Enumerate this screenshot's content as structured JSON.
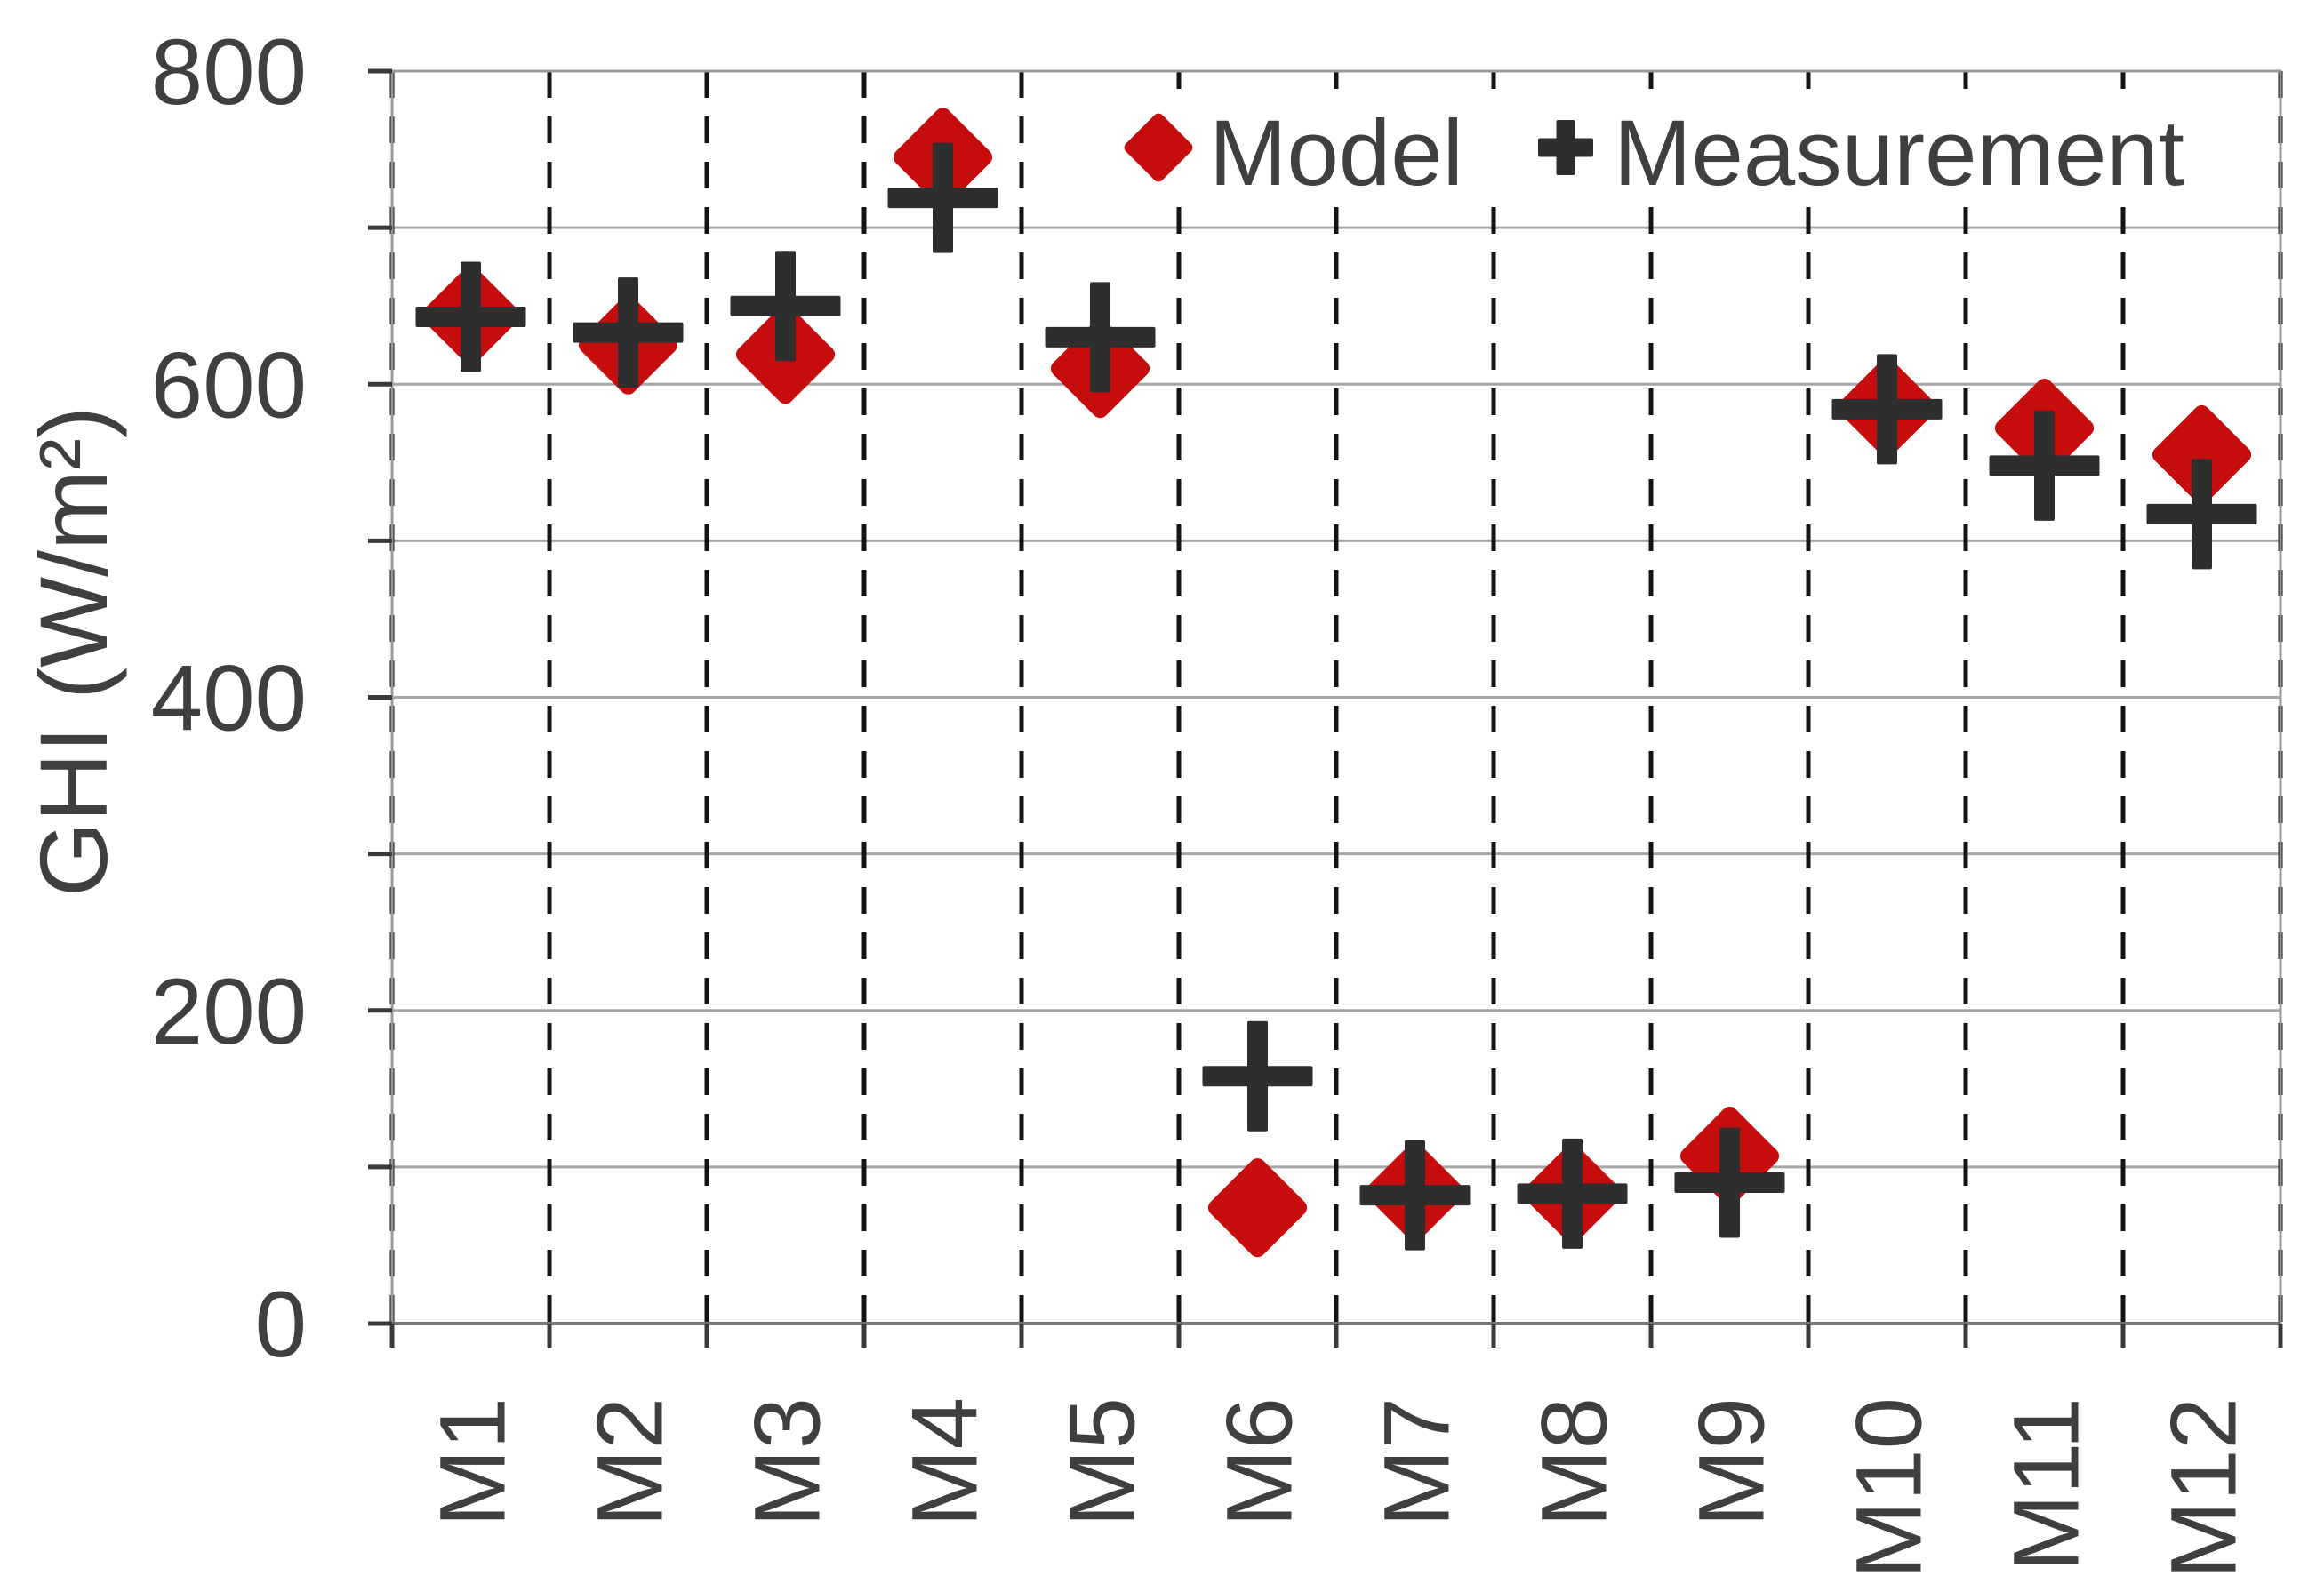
{
  "chart_data": {
    "type": "scatter",
    "title": "",
    "xlabel": "",
    "ylabel": "GHI (W/m²)",
    "categories": [
      "M1",
      "M2",
      "M3",
      "M4",
      "M5",
      "M6",
      "M7",
      "M8",
      "M9",
      "M10",
      "M11",
      "M12"
    ],
    "series": [
      {
        "name": "Model",
        "marker": "diamond",
        "color": "#c60d0d",
        "values": [
          644,
          625,
          619,
          745,
          610,
          74,
          84,
          83,
          107,
          585,
          572,
          555
        ]
      },
      {
        "name": "Measurement",
        "marker": "plus",
        "color": "#2e2e2e",
        "values": [
          643,
          633,
          650,
          719,
          630,
          158,
          82,
          83,
          90,
          584,
          548,
          517
        ]
      }
    ],
    "ylim": [
      0,
      800
    ],
    "yticks": [
      0,
      200,
      400,
      600,
      800
    ],
    "gridline_step": 100,
    "grid": "horizontal-solid-vertical-dashed",
    "legend_position": "top-inside"
  },
  "legend": {
    "model_label": "Model",
    "measurement_label": "Measurement"
  },
  "colors": {
    "model_red": "#c60d0d",
    "measurement_black": "#2e2e2e",
    "text": "#3f3f3f",
    "gridline": "#a6a6a6",
    "dashed_line": "#141414",
    "border": "#999999",
    "axis": "#767676",
    "tick": "#3a3a3a",
    "background": "#ffffff"
  }
}
